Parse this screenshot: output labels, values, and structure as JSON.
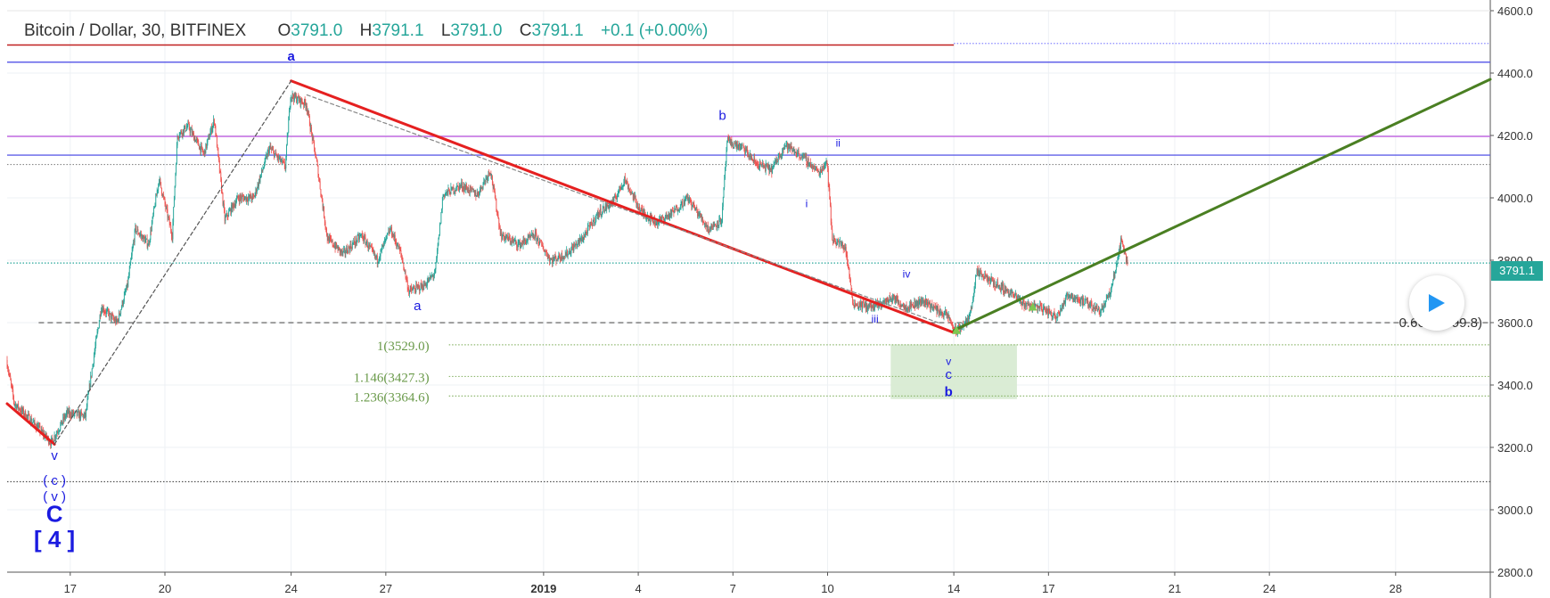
{
  "header": {
    "symbol": "Bitcoin / Dollar, 30, BITFINEX",
    "open_label": "O",
    "open": "3791.0",
    "high_label": "H",
    "high": "3791.1",
    "low_label": "L",
    "low": "3791.0",
    "close_label": "C",
    "close": "3791.1",
    "change": "+0.1 (+0.00%)"
  },
  "last_price_tag": "3791.1",
  "colors": {
    "up": "#26a69a",
    "down": "#ef5350",
    "downtrend_line": "#e52020",
    "uptrend_line": "#4a7f22",
    "wave_label": "#1a1ae0",
    "fib": "#6a9a4a",
    "target_box": "#d6ead0",
    "resistance_purple": "#c060e0",
    "resistance_blue": "#6060e8",
    "resistance_red": "#c02020"
  },
  "icons": {
    "play": "play-icon"
  },
  "chart_data": {
    "type": "candlestick",
    "title": "Bitcoin / Dollar, 30, BITFINEX",
    "ylim": [
      2800,
      4600
    ],
    "y_ticks": [
      "4600.0",
      "4400.0",
      "4200.0",
      "4000.0",
      "3800.0",
      "3600.0",
      "3400.0",
      "3200.0",
      "3000.0",
      "2800.0"
    ],
    "y_tick_values": [
      4600,
      4400,
      4200,
      4000,
      3800,
      3600,
      3400,
      3200,
      3000,
      2800
    ],
    "x_ticks": [
      {
        "label": "17",
        "date": "2018-12-17"
      },
      {
        "label": "20",
        "date": "2018-12-20"
      },
      {
        "label": "24",
        "date": "2018-12-24"
      },
      {
        "label": "27",
        "date": "2018-12-27"
      },
      {
        "label": "2019",
        "date": "2019-01-01"
      },
      {
        "label": "4",
        "date": "2019-01-04"
      },
      {
        "label": "7",
        "date": "2019-01-07"
      },
      {
        "label": "10",
        "date": "2019-01-10"
      },
      {
        "label": "14",
        "date": "2019-01-14"
      },
      {
        "label": "17",
        "date": "2019-01-17"
      },
      {
        "label": "21",
        "date": "2019-01-21"
      },
      {
        "label": "24",
        "date": "2019-01-24"
      },
      {
        "label": "28",
        "date": "2019-01-28"
      }
    ],
    "x_range": [
      "2018-12-15T00:00",
      "2019-01-31T00:00"
    ],
    "price_path": [
      [
        "2018-12-15T00:00",
        3480
      ],
      [
        "2018-12-15T06:00",
        3340
      ],
      [
        "2018-12-15T18:00",
        3290
      ],
      [
        "2018-12-16T10:00",
        3215
      ],
      [
        "2018-12-16T22:00",
        3310
      ],
      [
        "2018-12-17T12:00",
        3300
      ],
      [
        "2018-12-17T18:00",
        3480
      ],
      [
        "2018-12-18T00:00",
        3650
      ],
      [
        "2018-12-18T12:00",
        3600
      ],
      [
        "2018-12-18T20:00",
        3720
      ],
      [
        "2018-12-19T02:00",
        3900
      ],
      [
        "2018-12-19T12:00",
        3850
      ],
      [
        "2018-12-19T20:00",
        4060
      ],
      [
        "2018-12-20T06:00",
        3880
      ],
      [
        "2018-12-20T10:00",
        4200
      ],
      [
        "2018-12-20T18:00",
        4230
      ],
      [
        "2018-12-21T06:00",
        4140
      ],
      [
        "2018-12-21T14:00",
        4250
      ],
      [
        "2018-12-21T22:00",
        3930
      ],
      [
        "2018-12-22T08:00",
        4000
      ],
      [
        "2018-12-22T20:00",
        4000
      ],
      [
        "2018-12-23T08:00",
        4160
      ],
      [
        "2018-12-23T20:00",
        4100
      ],
      [
        "2018-12-24T00:00",
        4330
      ],
      [
        "2018-12-24T12:00",
        4300
      ],
      [
        "2018-12-24T20:00",
        4110
      ],
      [
        "2018-12-25T04:00",
        3870
      ],
      [
        "2018-12-25T16:00",
        3820
      ],
      [
        "2018-12-26T06:00",
        3880
      ],
      [
        "2018-12-26T18:00",
        3800
      ],
      [
        "2018-12-27T04:00",
        3900
      ],
      [
        "2018-12-27T12:00",
        3820
      ],
      [
        "2018-12-27T18:00",
        3700
      ],
      [
        "2018-12-28T06:00",
        3720
      ],
      [
        "2018-12-28T14:00",
        3760
      ],
      [
        "2018-12-28T20:00",
        4010
      ],
      [
        "2018-12-29T10:00",
        4040
      ],
      [
        "2018-12-29T22:00",
        4010
      ],
      [
        "2018-12-30T08:00",
        4090
      ],
      [
        "2018-12-30T16:00",
        3880
      ],
      [
        "2018-12-31T06:00",
        3850
      ],
      [
        "2018-12-31T18:00",
        3880
      ],
      [
        "2019-01-01T06:00",
        3800
      ],
      [
        "2019-01-01T18:00",
        3820
      ],
      [
        "2019-01-02T06:00",
        3870
      ],
      [
        "2019-01-02T18:00",
        3950
      ],
      [
        "2019-01-03T06:00",
        3990
      ],
      [
        "2019-01-03T14:00",
        4060
      ],
      [
        "2019-01-04T02:00",
        3960
      ],
      [
        "2019-01-04T14:00",
        3920
      ],
      [
        "2019-01-05T02:00",
        3950
      ],
      [
        "2019-01-05T14:00",
        4000
      ],
      [
        "2019-01-06T06:00",
        3900
      ],
      [
        "2019-01-06T16:00",
        3930
      ],
      [
        "2019-01-06T20:00",
        4180
      ],
      [
        "2019-01-07T08:00",
        4160
      ],
      [
        "2019-01-07T18:00",
        4110
      ],
      [
        "2019-01-08T06:00",
        4090
      ],
      [
        "2019-01-08T16:00",
        4170
      ],
      [
        "2019-01-09T06:00",
        4130
      ],
      [
        "2019-01-09T18:00",
        4080
      ],
      [
        "2019-01-10T00:00",
        4120
      ],
      [
        "2019-01-10T04:00",
        3870
      ],
      [
        "2019-01-10T14:00",
        3840
      ],
      [
        "2019-01-10T20:00",
        3660
      ],
      [
        "2019-01-11T12:00",
        3650
      ],
      [
        "2019-01-12T02:00",
        3680
      ],
      [
        "2019-01-12T12:00",
        3650
      ],
      [
        "2019-01-13T02:00",
        3670
      ],
      [
        "2019-01-13T12:00",
        3640
      ],
      [
        "2019-01-13T20:00",
        3620
      ],
      [
        "2019-01-14T02:00",
        3570
      ],
      [
        "2019-01-14T12:00",
        3610
      ],
      [
        "2019-01-14T18:00",
        3760
      ],
      [
        "2019-01-15T06:00",
        3730
      ],
      [
        "2019-01-15T18:00",
        3700
      ],
      [
        "2019-01-16T06:00",
        3660
      ],
      [
        "2019-01-16T18:00",
        3650
      ],
      [
        "2019-01-17T06:00",
        3620
      ],
      [
        "2019-01-17T16:00",
        3690
      ],
      [
        "2019-01-18T06:00",
        3660
      ],
      [
        "2019-01-18T16:00",
        3640
      ],
      [
        "2019-01-19T00:00",
        3700
      ],
      [
        "2019-01-19T08:00",
        3870
      ],
      [
        "2019-01-19T12:00",
        3791
      ]
    ],
    "horizontal_lines": [
      {
        "price": 4490,
        "style": "solid",
        "color": "#c02020",
        "extent": "partial"
      },
      {
        "price": 4495,
        "style": "dotted",
        "color": "#8888ff",
        "extent": "partial-right"
      },
      {
        "price": 4435,
        "style": "solid",
        "color": "#6060e8",
        "extent": "full"
      },
      {
        "price": 4197,
        "style": "solid",
        "color": "#c060e0",
        "extent": "full"
      },
      {
        "price": 4137,
        "style": "solid",
        "color": "#6060e8",
        "extent": "full"
      },
      {
        "price": 4107,
        "style": "dotted",
        "color": "#888888",
        "extent": "full"
      },
      {
        "price": 3791.1,
        "style": "dotted",
        "color": "#26a69a",
        "extent": "full"
      },
      {
        "price": 3599.8,
        "style": "dashed",
        "color": "#555555",
        "extent": "from-2018-12-16"
      },
      {
        "price": 3529.0,
        "style": "dotted",
        "color": "#8fb870",
        "extent": "from-2018-12-29"
      },
      {
        "price": 3427.3,
        "style": "dotted",
        "color": "#8fb870",
        "extent": "from-2018-12-29"
      },
      {
        "price": 3364.6,
        "style": "dotted",
        "color": "#8fb870",
        "extent": "from-2018-12-29"
      },
      {
        "price": 3090,
        "style": "dotted",
        "color": "#555555",
        "extent": "full"
      }
    ],
    "fib_labels": [
      {
        "text": "1(3529.0)",
        "price": 3529.0
      },
      {
        "text": "1.146(3427.3)",
        "price": 3427.3
      },
      {
        "text": "1.236(3364.6)",
        "price": 3364.6
      }
    ],
    "fib_retrace_label": "0.667(3599.8)",
    "trendlines": [
      {
        "name": "downtrend",
        "color": "#e52020",
        "from": [
          "2018-12-24T00:00",
          4375
        ],
        "to": [
          "2019-01-14T00:00",
          3568
        ]
      },
      {
        "name": "early-down",
        "color": "#e52020",
        "from": [
          "2018-12-15T00:00",
          3340
        ],
        "to": [
          "2018-12-16T12:00",
          3210
        ]
      },
      {
        "name": "uptrend",
        "color": "#4a7f22",
        "from": [
          "2019-01-14T00:00",
          3575
        ],
        "to": [
          "2019-01-31T00:00",
          4380
        ]
      },
      {
        "name": "dashed-a",
        "color": "#555555",
        "style": "dashed",
        "from": [
          "2018-12-16T12:00",
          3210
        ],
        "to": [
          "2018-12-24T00:00",
          4375
        ]
      },
      {
        "name": "dashed-b",
        "color": "#888888",
        "style": "dashed",
        "from": [
          "2018-12-24T12:00",
          4330
        ],
        "to": [
          "2019-01-13T12:00",
          3600
        ]
      }
    ],
    "target_box": {
      "from": "2019-01-12T00:00",
      "to": "2019-01-16T00:00",
      "top": 3530,
      "bottom": 3355
    },
    "wave_labels": [
      {
        "text": "a",
        "date": "2018-12-24T00:00",
        "price": 4440,
        "bold": true
      },
      {
        "text": "a",
        "date": "2018-12-28T00:00",
        "price": 3640
      },
      {
        "text": "b",
        "date": "2019-01-06T16:00",
        "price": 4250
      },
      {
        "text": "ii",
        "date": "2019-01-10T08:00",
        "price": 4165,
        "small": true
      },
      {
        "text": "i",
        "date": "2019-01-09T08:00",
        "price": 3970,
        "small": true
      },
      {
        "text": "iv",
        "date": "2019-01-12T12:00",
        "price": 3745,
        "small": true
      },
      {
        "text": "iii",
        "date": "2019-01-11T12:00",
        "price": 3600,
        "small": true
      },
      {
        "text": "v",
        "date": "2019-01-13T20:00",
        "price": 3465,
        "small": true
      },
      {
        "text": "c",
        "date": "2019-01-13T20:00",
        "price": 3420
      },
      {
        "text": "b",
        "date": "2019-01-13T20:00",
        "price": 3365,
        "bold": true
      },
      {
        "text": "v",
        "date": "2018-12-16T12:00",
        "price": 3160
      },
      {
        "text": "( c )",
        "date": "2018-12-16T12:00",
        "price": 3080
      },
      {
        "text": "( v )",
        "date": "2018-12-16T12:00",
        "price": 3028
      },
      {
        "text": "C",
        "date": "2018-12-16T12:00",
        "price": 2962,
        "bold": true,
        "large": true
      },
      {
        "text": "[ 4 ]",
        "date": "2018-12-16T12:00",
        "price": 2880,
        "bold": true,
        "large": true
      }
    ]
  }
}
